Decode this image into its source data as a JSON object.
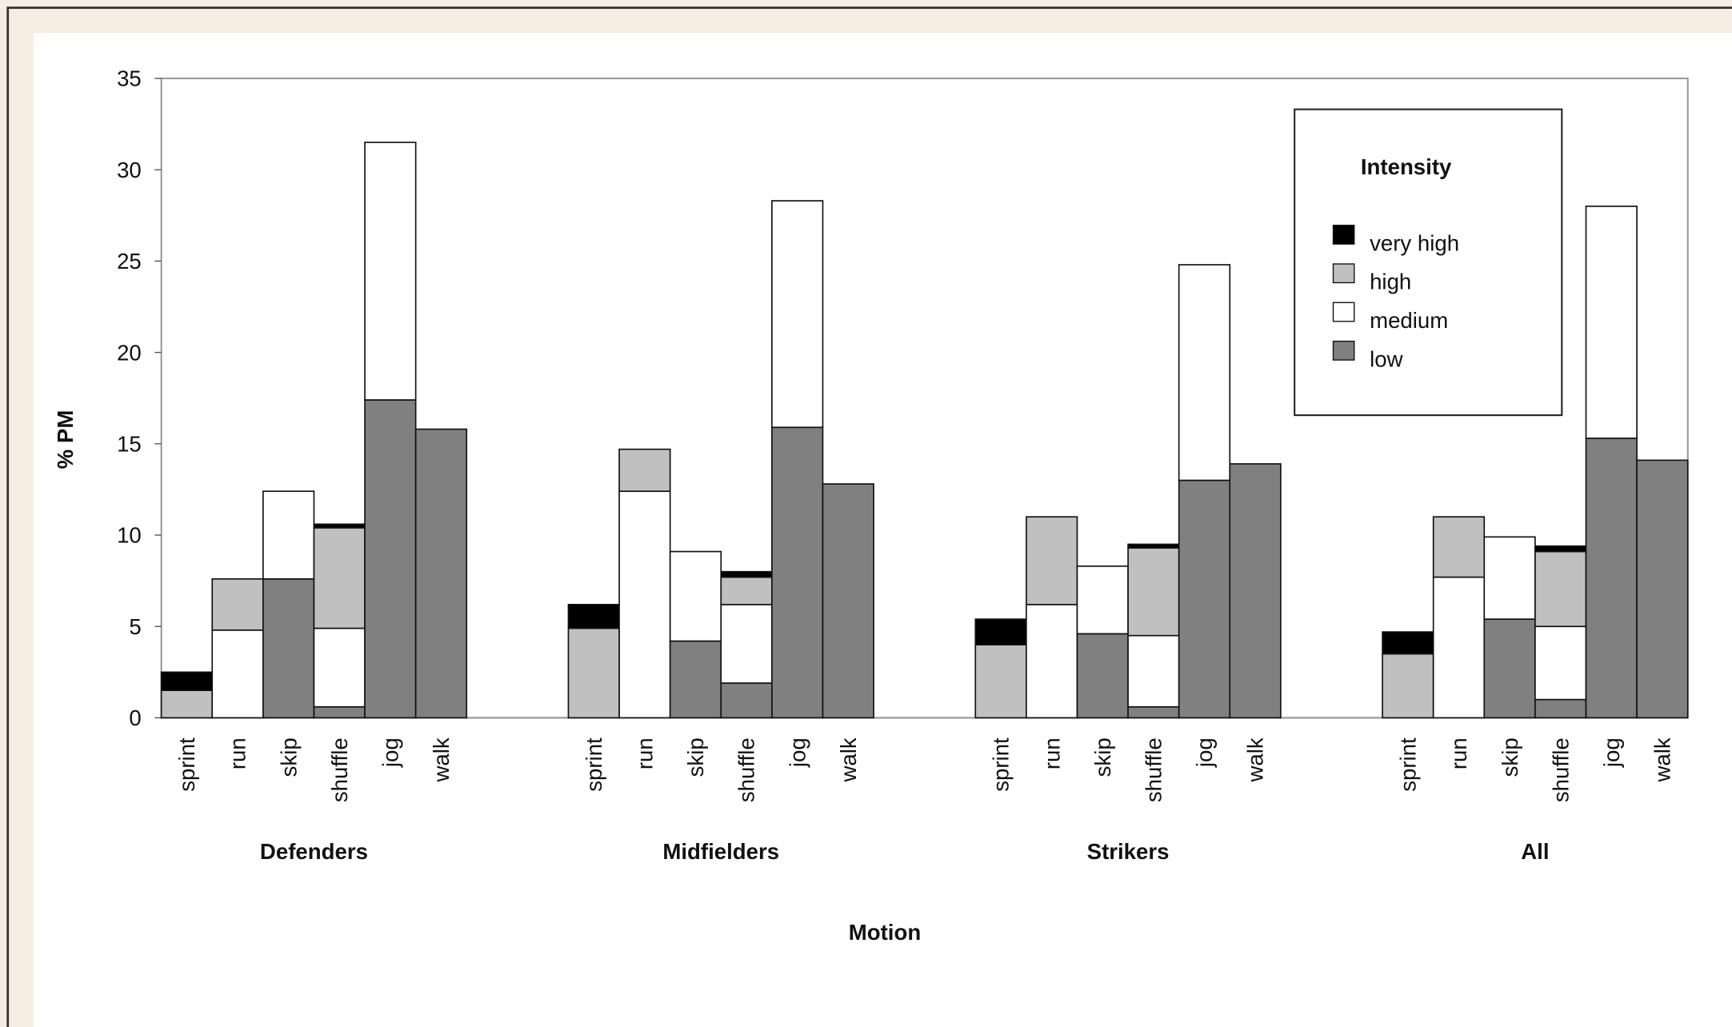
{
  "chart_data": {
    "type": "bar",
    "stacked": true,
    "x_label": "Motion",
    "y_label": "% PM",
    "legend_title": "Intensity",
    "legend_position": "upper right",
    "groups": [
      "Defenders",
      "Midfielders",
      "Strikers",
      "All"
    ],
    "categories": [
      "sprint",
      "run",
      "skip",
      "shuffle",
      "jog",
      "walk",
      "sprint",
      "run",
      "skip",
      "shuffle",
      "jog",
      "walk",
      "sprint",
      "run",
      "skip",
      "shuffle",
      "jog",
      "walk",
      "sprint",
      "run",
      "skip",
      "shuffle",
      "jog",
      "walk"
    ],
    "series": [
      {
        "name": "very high",
        "color": "#000000",
        "values": [
          1.0,
          0,
          0,
          0.2,
          0,
          0,
          1.3,
          0,
          0,
          0.3,
          0,
          0,
          1.4,
          0,
          0,
          0.2,
          0,
          0,
          1.2,
          0,
          0,
          0.3,
          0,
          0
        ]
      },
      {
        "name": "high",
        "color": "#c0c0c0",
        "values": [
          1.5,
          2.8,
          0,
          5.5,
          0,
          0,
          4.9,
          2.3,
          0,
          1.5,
          0,
          0,
          4.0,
          4.8,
          0,
          4.8,
          0,
          0,
          3.5,
          3.3,
          0,
          4.1,
          0,
          0
        ]
      },
      {
        "name": "medium",
        "color": "#ffffff",
        "values": [
          0,
          4.8,
          4.8,
          4.3,
          14.1,
          0,
          0,
          12.4,
          4.9,
          4.3,
          12.4,
          0,
          0,
          6.2,
          3.7,
          3.9,
          11.8,
          0,
          0,
          7.7,
          4.5,
          4.0,
          12.7,
          0
        ]
      },
      {
        "name": "low",
        "color": "#808080",
        "values": [
          0,
          0,
          7.6,
          0.6,
          17.4,
          15.8,
          0,
          0,
          4.2,
          1.9,
          15.9,
          12.8,
          0,
          0,
          4.6,
          0.6,
          13.0,
          13.9,
          0,
          0,
          5.4,
          1.0,
          15.3,
          14.1
        ]
      }
    ],
    "ylim": [
      0,
      35
    ],
    "yticks": [
      0,
      5,
      10,
      15,
      20,
      25,
      30,
      35
    ]
  }
}
